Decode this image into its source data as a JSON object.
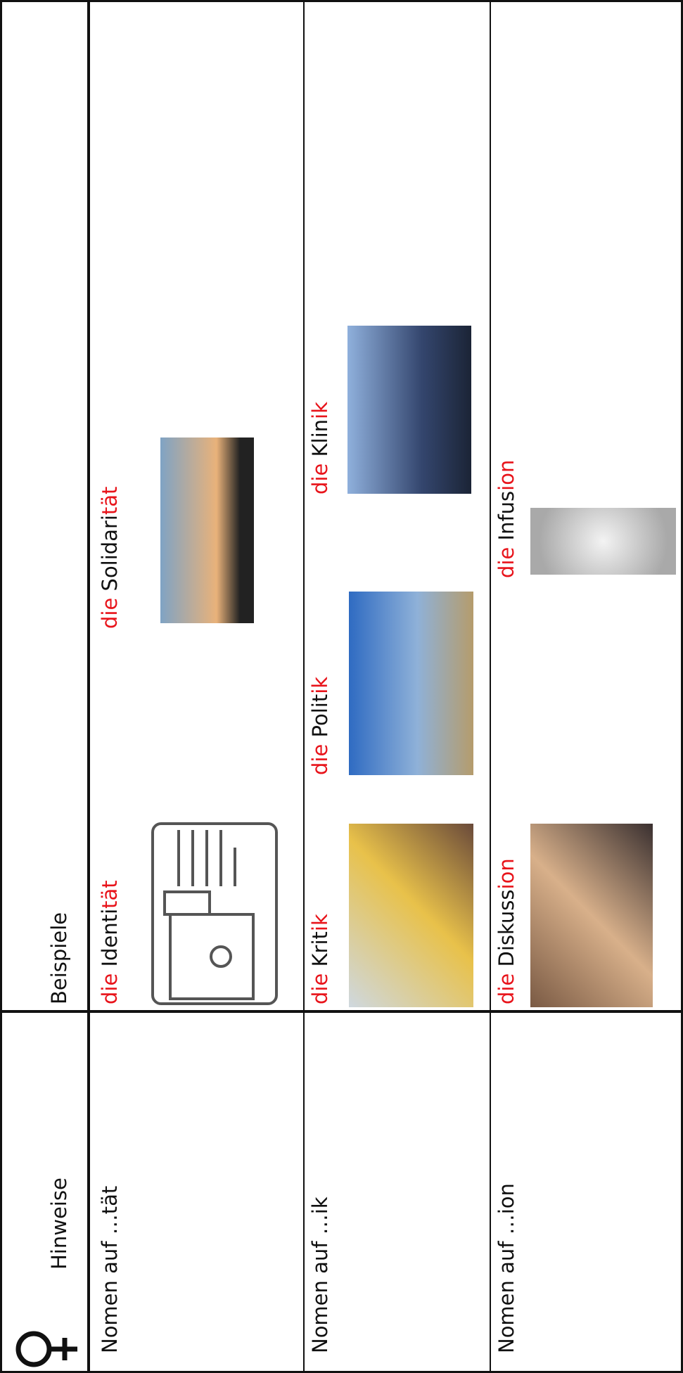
{
  "table": {
    "headers": [
      "Hinweise",
      "Beispiele"
    ],
    "rows": [
      {
        "hint": "Nomen auf …tät",
        "examples": [
          {
            "article": "die",
            "stem": "Identi",
            "suffix": "tät"
          },
          {
            "article": "die",
            "stem": "Solidari",
            "suffix": "tät"
          }
        ]
      },
      {
        "hint": "Nomen auf …ik",
        "examples": [
          {
            "article": "die",
            "stem": "Krit",
            "suffix": "ik"
          },
          {
            "article": "die",
            "stem": "Polit",
            "suffix": "ik"
          },
          {
            "article": "die",
            "stem": "Klin",
            "suffix": "ik"
          }
        ]
      },
      {
        "hint": "Nomen auf …ion",
        "examples": [
          {
            "article": "die",
            "stem": "Diskuss",
            "suffix": "ion"
          },
          {
            "article": "die",
            "stem": "Infus",
            "suffix": "ion"
          }
        ]
      }
    ]
  }
}
